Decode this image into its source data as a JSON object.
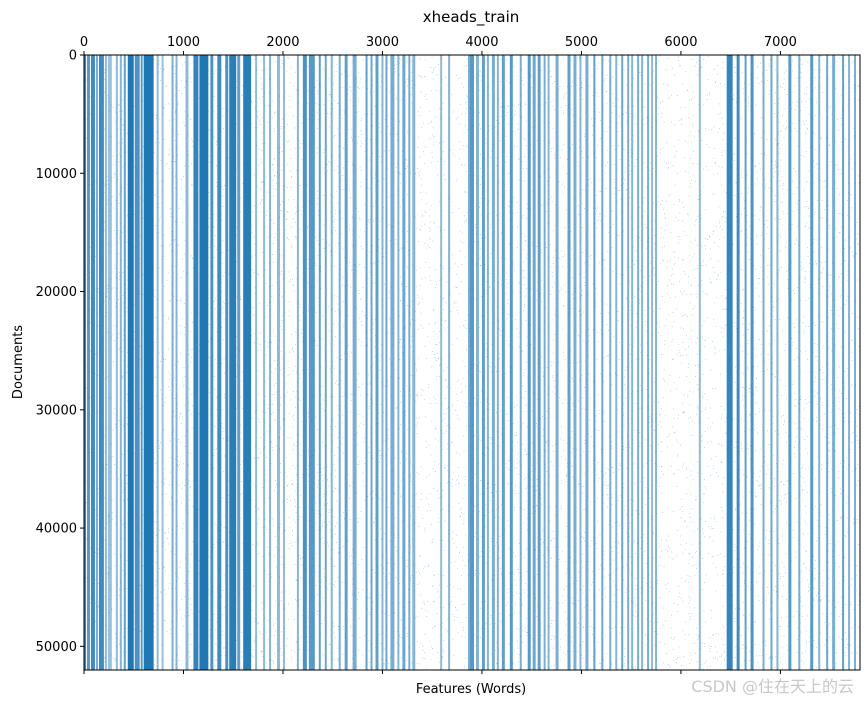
{
  "chart_data": {
    "type": "scatter",
    "title": "xheads_train",
    "xlabel": "Features (Words)",
    "ylabel": "Documents",
    "xlim": [
      0,
      7800
    ],
    "ylim": [
      52000,
      0
    ],
    "x_ticks": [
      0,
      1000,
      2000,
      3000,
      4000,
      5000,
      6000,
      7000
    ],
    "x_tick_labels": [
      "0",
      "1000",
      "2000",
      "3000",
      "4000",
      "5000",
      "6000",
      "7000"
    ],
    "x_tick_position": "top",
    "y_ticks": [
      0,
      10000,
      20000,
      30000,
      40000,
      50000
    ],
    "y_tick_labels": [
      "0",
      "10000",
      "20000",
      "30000",
      "40000",
      "50000"
    ],
    "grid": false,
    "marker_color": "#1f77b4",
    "dense_feature_ranges": [
      [
        0,
        20,
        0.9
      ],
      [
        30,
        60,
        0.75
      ],
      [
        70,
        110,
        0.85
      ],
      [
        120,
        140,
        0.6
      ],
      [
        150,
        200,
        0.85
      ],
      [
        210,
        230,
        0.5
      ],
      [
        240,
        280,
        0.45
      ],
      [
        320,
        340,
        0.5
      ],
      [
        360,
        380,
        0.55
      ],
      [
        400,
        420,
        0.7
      ],
      [
        440,
        500,
        1.0
      ],
      [
        510,
        560,
        0.8
      ],
      [
        570,
        590,
        0.75
      ],
      [
        600,
        700,
        1.0
      ],
      [
        730,
        750,
        0.5
      ],
      [
        780,
        800,
        0.45
      ],
      [
        880,
        900,
        0.6
      ],
      [
        920,
        940,
        0.55
      ],
      [
        1020,
        1050,
        0.5
      ],
      [
        1100,
        1150,
        0.9
      ],
      [
        1160,
        1250,
        1.0
      ],
      [
        1270,
        1300,
        0.8
      ],
      [
        1340,
        1380,
        0.85
      ],
      [
        1420,
        1450,
        0.8
      ],
      [
        1460,
        1530,
        0.95
      ],
      [
        1540,
        1570,
        0.7
      ],
      [
        1600,
        1680,
        0.95
      ],
      [
        1720,
        1740,
        0.5
      ],
      [
        1800,
        1820,
        0.5
      ],
      [
        1860,
        1880,
        0.55
      ],
      [
        1940,
        1970,
        0.5
      ],
      [
        2000,
        2020,
        0.5
      ],
      [
        2140,
        2160,
        0.55
      ],
      [
        2200,
        2240,
        0.8
      ],
      [
        2260,
        2320,
        0.75
      ],
      [
        2360,
        2380,
        0.7
      ],
      [
        2420,
        2440,
        0.65
      ],
      [
        2480,
        2500,
        0.55
      ],
      [
        2560,
        2580,
        0.6
      ],
      [
        2620,
        2650,
        0.7
      ],
      [
        2700,
        2740,
        0.6
      ],
      [
        2830,
        2850,
        0.7
      ],
      [
        2880,
        2900,
        0.65
      ],
      [
        2930,
        2960,
        0.7
      ],
      [
        2990,
        3010,
        0.55
      ],
      [
        3030,
        3050,
        0.65
      ],
      [
        3080,
        3120,
        0.6
      ],
      [
        3150,
        3170,
        0.55
      ],
      [
        3200,
        3230,
        0.65
      ],
      [
        3260,
        3280,
        0.6
      ],
      [
        3300,
        3330,
        0.55
      ],
      [
        3580,
        3600,
        0.5
      ],
      [
        3660,
        3680,
        0.55
      ],
      [
        3860,
        3880,
        0.6
      ],
      [
        3880,
        3920,
        0.75
      ],
      [
        3940,
        3970,
        0.55
      ],
      [
        4000,
        4030,
        0.7
      ],
      [
        4050,
        4070,
        0.55
      ],
      [
        4100,
        4130,
        0.6
      ],
      [
        4150,
        4170,
        0.55
      ],
      [
        4200,
        4230,
        0.7
      ],
      [
        4280,
        4310,
        0.75
      ],
      [
        4380,
        4400,
        0.6
      ],
      [
        4460,
        4490,
        0.75
      ],
      [
        4510,
        4540,
        0.65
      ],
      [
        4560,
        4590,
        0.7
      ],
      [
        4620,
        4640,
        0.6
      ],
      [
        4660,
        4680,
        0.55
      ],
      [
        4740,
        4770,
        0.6
      ],
      [
        4860,
        4890,
        0.7
      ],
      [
        4920,
        4950,
        0.6
      ],
      [
        4980,
        5000,
        0.55
      ],
      [
        5040,
        5070,
        0.6
      ],
      [
        5120,
        5140,
        0.7
      ],
      [
        5200,
        5220,
        0.65
      ],
      [
        5280,
        5300,
        0.6
      ],
      [
        5340,
        5360,
        0.55
      ],
      [
        5400,
        5420,
        0.65
      ],
      [
        5460,
        5480,
        0.6
      ],
      [
        5500,
        5520,
        0.55
      ],
      [
        5560,
        5580,
        0.6
      ],
      [
        5600,
        5620,
        0.55
      ],
      [
        5660,
        5680,
        0.6
      ],
      [
        5700,
        5720,
        0.5
      ],
      [
        5740,
        5760,
        0.55
      ],
      [
        6180,
        6200,
        0.5
      ],
      [
        6460,
        6520,
        0.9
      ],
      [
        6560,
        6590,
        0.85
      ],
      [
        6640,
        6660,
        0.7
      ],
      [
        6700,
        6730,
        0.8
      ],
      [
        6820,
        6840,
        0.6
      ],
      [
        6900,
        6920,
        0.65
      ],
      [
        6960,
        6980,
        0.55
      ],
      [
        7080,
        7110,
        0.75
      ],
      [
        7180,
        7200,
        0.6
      ],
      [
        7300,
        7330,
        0.75
      ],
      [
        7380,
        7400,
        0.55
      ],
      [
        7460,
        7480,
        0.65
      ],
      [
        7520,
        7550,
        0.6
      ],
      [
        7620,
        7640,
        0.7
      ],
      [
        7680,
        7700,
        0.55
      ],
      [
        7740,
        7760,
        0.6
      ]
    ]
  },
  "watermark": "CSDN @住在天上的云"
}
